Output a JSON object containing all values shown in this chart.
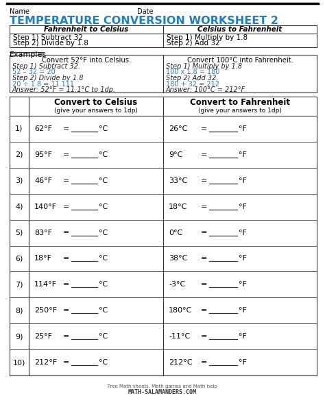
{
  "title": "TEMPERATURE CONVERSION WORKSHEET 2",
  "title_color": "#1e7ec8",
  "name_label": "Name",
  "date_label": "Date",
  "steps_table": {
    "col1_header": "Fahrenheit to Celsius",
    "col2_header": "Celsius to Fahrenheit",
    "col1_rows": [
      "Step 1) Subtract 32",
      "Step 2) Divide by 1.8"
    ],
    "col2_rows": [
      "Step 1) Multiply by 1.8",
      "Step 2) Add 32"
    ]
  },
  "examples_label": "Examples",
  "example1": {
    "header": "Convert 52°F into Celsius.",
    "lines": [
      {
        "text": "Step 1) Subtract 32.",
        "color": "#222222",
        "style": "italic"
      },
      {
        "text": "52 – 32 = 20",
        "color": "#1e7ec8",
        "style": "normal"
      },
      {
        "text": "Step 2) Divide by 1.8",
        "color": "#222222",
        "style": "italic"
      },
      {
        "text": "20 ÷ 1.8 = 11.111",
        "color": "#1e7ec8",
        "style": "normal"
      },
      {
        "text": "Answer: 52°F = 11.1°C to 1dp.",
        "color": "#222222",
        "style": "italic"
      }
    ]
  },
  "example2": {
    "header": "Convert 100°C into Fahrenheit.",
    "lines": [
      {
        "text": "Step 1) Multiply by 1.8",
        "color": "#222222",
        "style": "italic"
      },
      {
        "text": "100 x 1.8 = 180",
        "color": "#1e7ec8",
        "style": "normal"
      },
      {
        "text": "Step 2) Add 32.",
        "color": "#222222",
        "style": "italic"
      },
      {
        "text": "180 + 32 = 212",
        "color": "#1e7ec8",
        "style": "normal"
      },
      {
        "text": "Answer: 100°C = 212°F",
        "color": "#222222",
        "style": "italic"
      }
    ]
  },
  "practice_header1": "Convert to Celsius",
  "practice_subheader1": "(give your answers to 1dp)",
  "practice_header2": "Convert to Fahrenheit",
  "practice_subheader2": "(give your answers to 1dp)",
  "fahrenheit_values": [
    "62°F",
    "95°F",
    "46°F",
    "140°F",
    "83°F",
    "18°F",
    "114°F",
    "250°F",
    "25°F",
    "212°F"
  ],
  "celsius_values": [
    "26°C",
    "9°C",
    "33°C",
    "18°C",
    "0°C",
    "38°C",
    "-3°C",
    "180°C",
    "-11°C",
    "212°C"
  ],
  "footer_line1": "Free Math sheets, Math games and Math help",
  "footer_line2": "MATH-SALAMANDERS.COM",
  "bg_color": "#ffffff"
}
